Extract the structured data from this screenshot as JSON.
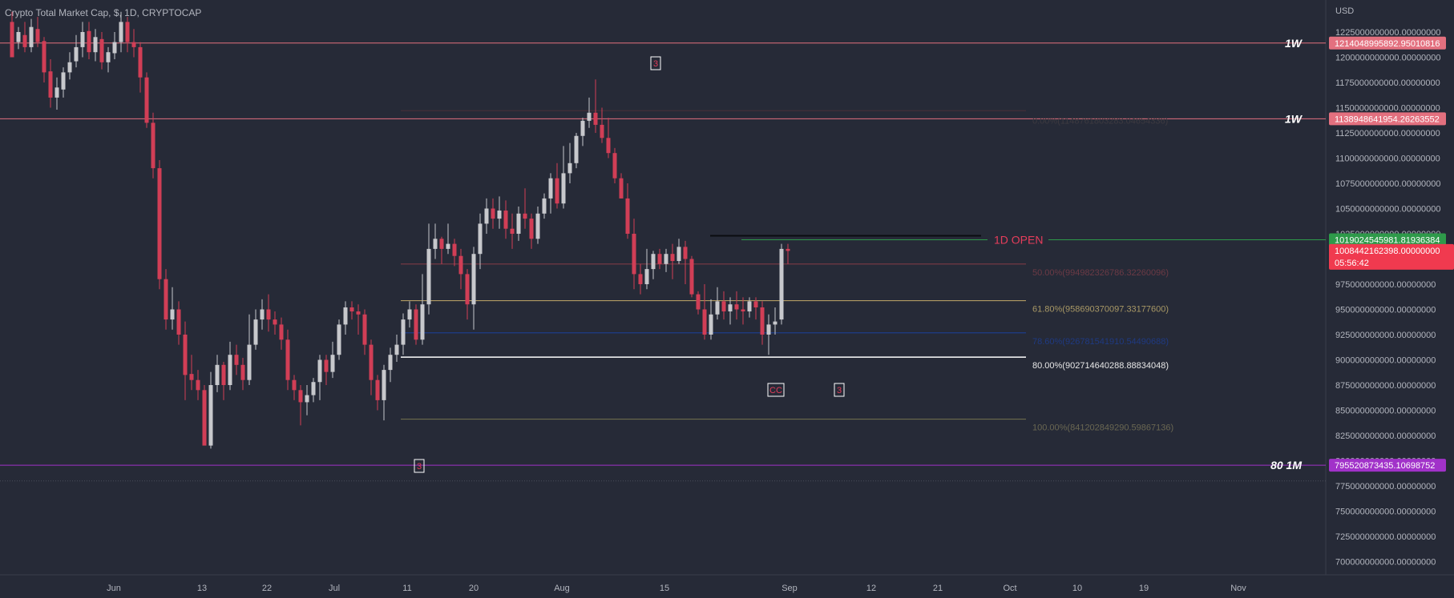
{
  "header": {
    "symbol": "Crypto Total Market Cap, $, 1D, CRYPTOCAP",
    "currency": "USD"
  },
  "colors": {
    "background": "#262a37",
    "bull": "#c7c8cc",
    "bear": "#d13e56",
    "weekly_level": "#e3707f",
    "monthly_level": "#a132c9",
    "open_line": "#2e9a4a",
    "fib_50": "#7d3a46",
    "fib_618": "#b09a63",
    "fib_786": "#1e3d8a",
    "fib_80": "#ffffff",
    "fib_100": "#6d6a4c"
  },
  "chart_data": {
    "type": "candlestick",
    "x_axis_labels": [
      "Jun",
      "13",
      "22",
      "Jul",
      "11",
      "20",
      "Aug",
      "15",
      "Sep",
      "12",
      "21",
      "Oct",
      "10",
      "19",
      "Nov"
    ],
    "y_axis_ticks": [
      "1225000000000.00000000",
      "1200000000000.00000000",
      "1175000000000.00000000",
      "1150000000000.00000000",
      "1125000000000.00000000",
      "1100000000000.00000000",
      "1075000000000.00000000",
      "1050000000000.00000000",
      "1025000000000.00000000",
      "1000000000000.00000000",
      "975000000000.00000000",
      "950000000000.00000000",
      "925000000000.00000000",
      "900000000000.00000000",
      "875000000000.00000000",
      "850000000000.00000000",
      "825000000000.00000000",
      "800000000000.00000000",
      "775000000000.00000000",
      "750000000000.00000000",
      "725000000000.00000000",
      "700000000000.00000000"
    ],
    "ylim": [
      690000000000,
      1235000000000
    ],
    "ohlc": [
      [
        1235,
        1200,
        1245,
        1215
      ],
      [
        1215,
        1225,
        1230,
        1208
      ],
      [
        1222,
        1210,
        1235,
        1205
      ],
      [
        1210,
        1230,
        1238,
        1205
      ],
      [
        1228,
        1215,
        1240,
        1210
      ],
      [
        1216,
        1185,
        1220,
        1175
      ],
      [
        1186,
        1160,
        1198,
        1150
      ],
      [
        1160,
        1170,
        1180,
        1148
      ],
      [
        1168,
        1185,
        1190,
        1160
      ],
      [
        1185,
        1195,
        1205,
        1178
      ],
      [
        1196,
        1210,
        1222,
        1190
      ],
      [
        1210,
        1225,
        1235,
        1200
      ],
      [
        1226,
        1205,
        1235,
        1198
      ],
      [
        1205,
        1220,
        1228,
        1196
      ],
      [
        1218,
        1195,
        1225,
        1188
      ],
      [
        1195,
        1205,
        1210,
        1185
      ],
      [
        1204,
        1215,
        1225,
        1198
      ],
      [
        1215,
        1235,
        1245,
        1205
      ],
      [
        1235,
        1215,
        1240,
        1205
      ],
      [
        1215,
        1210,
        1228,
        1200
      ],
      [
        1210,
        1180,
        1215,
        1165
      ],
      [
        1180,
        1135,
        1185,
        1130
      ],
      [
        1135,
        1090,
        1145,
        1080
      ],
      [
        1090,
        980,
        1098,
        970
      ],
      [
        980,
        940,
        990,
        930
      ],
      [
        940,
        950,
        972,
        930
      ],
      [
        950,
        925,
        958,
        915
      ],
      [
        925,
        885,
        938,
        860
      ],
      [
        886,
        880,
        905,
        870
      ],
      [
        880,
        870,
        890,
        860
      ],
      [
        870,
        815,
        875,
        820
      ],
      [
        815,
        875,
        888,
        812
      ],
      [
        875,
        895,
        905,
        868
      ],
      [
        895,
        875,
        898,
        860
      ],
      [
        875,
        905,
        918,
        870
      ],
      [
        905,
        895,
        915,
        885
      ],
      [
        895,
        880,
        902,
        870
      ],
      [
        880,
        915,
        945,
        875
      ],
      [
        915,
        940,
        950,
        910
      ],
      [
        940,
        950,
        960,
        930
      ],
      [
        950,
        940,
        965,
        928
      ],
      [
        940,
        935,
        948,
        925
      ],
      [
        935,
        920,
        942,
        910
      ],
      [
        920,
        880,
        930,
        870
      ],
      [
        880,
        870,
        885,
        860
      ],
      [
        870,
        858,
        875,
        835
      ],
      [
        858,
        865,
        875,
        845
      ],
      [
        865,
        878,
        882,
        858
      ],
      [
        878,
        900,
        905,
        860
      ],
      [
        900,
        888,
        905,
        875
      ],
      [
        888,
        905,
        918,
        882
      ],
      [
        905,
        935,
        940,
        900
      ],
      [
        935,
        952,
        958,
        925
      ],
      [
        952,
        948,
        958,
        940
      ],
      [
        948,
        945,
        955,
        925
      ],
      [
        945,
        915,
        950,
        905
      ],
      [
        915,
        880,
        920,
        865
      ],
      [
        880,
        860,
        885,
        850
      ],
      [
        860,
        890,
        895,
        840
      ],
      [
        890,
        905,
        912,
        878
      ],
      [
        905,
        915,
        925,
        898
      ],
      [
        915,
        940,
        946,
        905
      ],
      [
        940,
        950,
        958,
        932
      ],
      [
        950,
        920,
        955,
        915
      ],
      [
        920,
        955,
        985,
        915
      ],
      [
        955,
        1010,
        1035,
        945
      ],
      [
        1010,
        1020,
        1035,
        1000
      ],
      [
        1020,
        1010,
        1022,
        995
      ],
      [
        1010,
        1015,
        1035,
        1005
      ],
      [
        1015,
        1003,
        1020,
        993
      ],
      [
        1003,
        985,
        1010,
        970
      ],
      [
        985,
        955,
        990,
        940
      ],
      [
        955,
        1005,
        1012,
        930
      ],
      [
        1005,
        1035,
        1045,
        990
      ],
      [
        1035,
        1050,
        1060,
        1025
      ],
      [
        1050,
        1040,
        1060,
        1030
      ],
      [
        1040,
        1048,
        1062,
        1030
      ],
      [
        1048,
        1030,
        1058,
        1020
      ],
      [
        1030,
        1025,
        1045,
        1010
      ],
      [
        1025,
        1045,
        1052,
        1018
      ],
      [
        1045,
        1040,
        1070,
        1030
      ],
      [
        1040,
        1020,
        1045,
        1010
      ],
      [
        1020,
        1045,
        1052,
        1015
      ],
      [
        1045,
        1060,
        1065,
        1040
      ],
      [
        1060,
        1080,
        1085,
        1045
      ],
      [
        1080,
        1055,
        1095,
        1050
      ],
      [
        1055,
        1085,
        1112,
        1050
      ],
      [
        1085,
        1095,
        1115,
        1075
      ],
      [
        1095,
        1122,
        1125,
        1090
      ],
      [
        1122,
        1137,
        1140,
        1112
      ],
      [
        1137,
        1145,
        1160,
        1130
      ],
      [
        1145,
        1133,
        1178,
        1125
      ],
      [
        1133,
        1120,
        1150,
        1115
      ],
      [
        1120,
        1105,
        1140,
        1100
      ],
      [
        1105,
        1080,
        1110,
        1075
      ],
      [
        1080,
        1060,
        1085,
        1060
      ],
      [
        1060,
        1025,
        1075,
        1020
      ],
      [
        1025,
        985,
        1040,
        970
      ],
      [
        985,
        975,
        995,
        965
      ],
      [
        975,
        990,
        1010,
        970
      ],
      [
        990,
        1005,
        1008,
        980
      ],
      [
        1005,
        995,
        1010,
        990
      ],
      [
        995,
        1005,
        1010,
        987
      ],
      [
        1005,
        998,
        1015,
        980
      ],
      [
        998,
        1012,
        1020,
        995
      ],
      [
        1012,
        1000,
        1018,
        975
      ],
      [
        1000,
        965,
        1003,
        962
      ],
      [
        965,
        950,
        968,
        945
      ],
      [
        950,
        925,
        975,
        920
      ],
      [
        925,
        945,
        960,
        920
      ],
      [
        945,
        958,
        972,
        940
      ],
      [
        958,
        948,
        968,
        940
      ],
      [
        948,
        955,
        962,
        935
      ],
      [
        955,
        950,
        968,
        940
      ],
      [
        950,
        948,
        962,
        935
      ],
      [
        948,
        958,
        962,
        942
      ],
      [
        958,
        952,
        962,
        940
      ],
      [
        952,
        925,
        958,
        915
      ],
      [
        925,
        935,
        945,
        905
      ],
      [
        935,
        938,
        952,
        925
      ],
      [
        940,
        1010,
        1015,
        935
      ],
      [
        1010,
        1008,
        1015,
        995
      ]
    ],
    "horizontal_levels": [
      {
        "value": 1214048995892.9502,
        "label": "1W",
        "price_tag": "1214048995892.95010816"
      },
      {
        "value": 1138948641954.2627,
        "label": "1W",
        "price_tag": "1138948641954.26263552"
      },
      {
        "value": 795520873435.1069,
        "label": "80 1M",
        "price_tag": "795520873435.10698752"
      }
    ],
    "open_line": {
      "value": 1019024545981.8193,
      "label": "1D OPEN",
      "price_tag": "1019024545981.81936384"
    },
    "last_price": {
      "value": 1008442162398.0,
      "price_tag": "1008442162398.00000000",
      "countdown": "05:56:42"
    },
    "fibonacci": [
      {
        "level": "50.00%",
        "value": 994982326786.3226,
        "label": "50.00%(994982326786.32260096)"
      },
      {
        "level": "61.80%",
        "value": 958690370097.3318,
        "label": "61.80%(958690370097.33177600)"
      },
      {
        "level": "78.60%",
        "value": 926781541910.5449,
        "label": "78.60%(926781541910.54490688)"
      },
      {
        "level": "80.00%",
        "value": 902714640288.8883,
        "label": "80.00%(902714640288.88834048)"
      },
      {
        "level": "100.00%",
        "value": 841202849290.5986,
        "label": "100.00%(841202849290.59867136)"
      }
    ],
    "annotations": [
      "3",
      "3",
      "CC",
      "3"
    ]
  }
}
